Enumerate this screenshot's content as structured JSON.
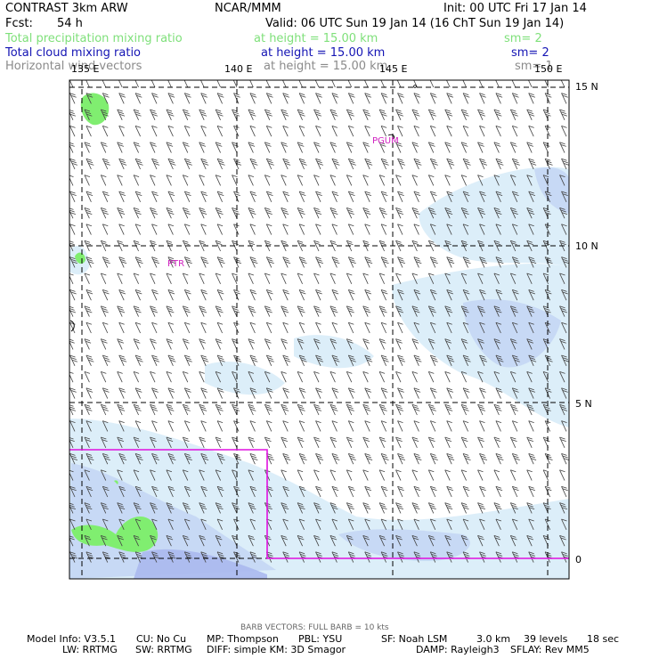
{
  "header": {
    "model": "CONTRAST  3km ARW",
    "center": "NCAR/MMM",
    "init": "Init: 00 UTC Fri 17 Jan 14",
    "fcst_label": "Fcst:",
    "fcst_value": "54 h",
    "valid": "Valid: 06 UTC Sun 19 Jan 14 (16 ChT Sun 19 Jan 14)"
  },
  "fields": [
    {
      "name": "Total precipitation mixing ratio",
      "height": "at height = 15.00 km",
      "sm": "sm= 2",
      "color": "#7fe07a"
    },
    {
      "name": "Total cloud mixing ratio",
      "height": "at height = 15.00 km",
      "sm": "sm= 2",
      "color": "#1414b4"
    },
    {
      "name": "Horizontal wind vectors",
      "height": "at height = 15.00 km",
      "sm": "sm= 1",
      "color": "#8a8a8a"
    }
  ],
  "map": {
    "lon_labels": [
      "135 E",
      "140 E",
      "145 E",
      "150 E"
    ],
    "lat_labels": [
      "15 N",
      "10 N",
      "5 N",
      "0"
    ],
    "station_labels": [
      "PGUM",
      "PTR"
    ],
    "station_color": "#d020c0",
    "domain_box_color": "#e010e0",
    "cloud_light": "#d8ecf8",
    "cloud_mid": "#c4d6f4",
    "cloud_dark": "#aab8ee",
    "precip_color": "#80ee70"
  },
  "footer": {
    "barb_note": "BARB VECTORS:  FULL BARB = 10 kts",
    "line1": [
      "Model Info: V3.5.1",
      "CU: No Cu",
      "MP: Thompson",
      "PBL: YSU",
      "SF: Noah LSM",
      "3.0 km",
      "39 levels",
      "18 sec"
    ],
    "line2": [
      "LW: RRTMG",
      "SW: RRTMG",
      "DIFF: simple KM: 3D Smagor",
      "DAMP: Rayleigh3",
      "SFLAY: Rev MM5"
    ]
  }
}
